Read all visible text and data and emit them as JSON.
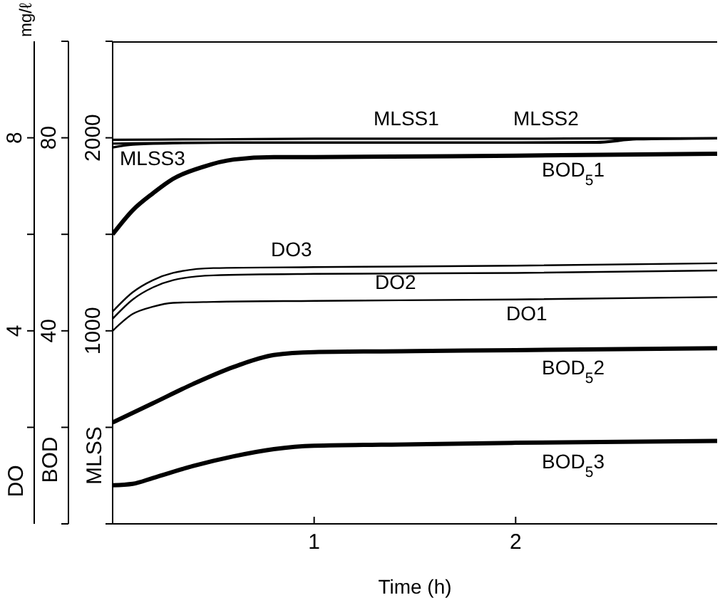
{
  "chart_data": {
    "type": "line",
    "xlabel": "Time (h)",
    "ylabel": "MLSS",
    "y2label": "BOD",
    "y3label": "DO",
    "annotations": [
      "mg/ℓ"
    ],
    "xlim": [
      0,
      3
    ],
    "xticks": [
      1,
      2
    ],
    "ylim": [
      0,
      2500
    ],
    "yticks": [
      {
        "value": 0,
        "label": null
      },
      {
        "value": 500,
        "label": null
      },
      1000,
      {
        "value": 1500,
        "label": null
      },
      2000,
      {
        "value": 2500,
        "label": null
      }
    ],
    "y2lim": [
      0,
      100
    ],
    "y2ticks": [
      {
        "value": 0,
        "label": null
      },
      {
        "value": 20,
        "label": null
      },
      40,
      {
        "value": 60,
        "label": null
      },
      80,
      {
        "value": 100,
        "label": null
      }
    ],
    "y3lim": [
      0,
      10
    ],
    "y3ticks": [
      {
        "value": 2,
        "label": null
      },
      4,
      {
        "value": 6,
        "label": null
      },
      8
    ],
    "series": [
      {
        "name": "MLSS1",
        "color": "#000000",
        "axis": "y",
        "x": [
          0,
          0.5,
          1,
          1.5,
          2,
          2.5,
          3
        ],
        "values": [
          1990,
          1992,
          1995,
          1995,
          1995,
          1997,
          1997
        ]
      },
      {
        "name": "MLSS2",
        "color": "#000000",
        "axis": "y",
        "x": [
          0,
          0.5,
          1,
          1.5,
          2,
          2.4,
          2.6,
          3
        ],
        "values": [
          1970,
          1975,
          1975,
          1975,
          1975,
          1978,
          1995,
          1997
        ]
      },
      {
        "name": "MLSS3",
        "color": "#000000",
        "axis": "y",
        "x": [
          0,
          0.1,
          0.3,
          0.6,
          1,
          2,
          2.4,
          2.6,
          3
        ],
        "values": [
          1950,
          1965,
          1972,
          1975,
          1975,
          1975,
          1975,
          1992,
          1997
        ]
      },
      {
        "name": "BOD$_{5}$1",
        "color": "#000000",
        "axis": "y2",
        "x": [
          0,
          0.1,
          0.2,
          0.3,
          0.45,
          0.6,
          0.8,
          1,
          2,
          3
        ],
        "values": [
          60,
          65,
          68.5,
          71.5,
          74,
          75.5,
          76,
          76,
          76.3,
          76.7
        ]
      },
      {
        "name": "DO3",
        "color": "#000000",
        "axis": "y3",
        "x": [
          0,
          0.1,
          0.2,
          0.3,
          0.5,
          1,
          2,
          3
        ],
        "values": [
          4.4,
          4.8,
          5.05,
          5.2,
          5.3,
          5.32,
          5.35,
          5.4
        ]
      },
      {
        "name": "DO2",
        "color": "#000000",
        "axis": "y3",
        "x": [
          0,
          0.1,
          0.2,
          0.3,
          0.5,
          1,
          2,
          3
        ],
        "values": [
          4.25,
          4.65,
          4.9,
          5.05,
          5.15,
          5.18,
          5.2,
          5.25
        ]
      },
      {
        "name": "DO1",
        "color": "#000000",
        "axis": "y3",
        "x": [
          0,
          0.1,
          0.2,
          0.3,
          0.5,
          1,
          2,
          3
        ],
        "values": [
          4.0,
          4.35,
          4.5,
          4.58,
          4.6,
          4.62,
          4.65,
          4.7
        ]
      },
      {
        "name": "BOD$_{5}$2",
        "color": "#000000",
        "axis": "y2",
        "x": [
          0,
          0.2,
          0.4,
          0.6,
          0.8,
          1,
          1.5,
          2,
          3
        ],
        "values": [
          21,
          25,
          29,
          32.5,
          35,
          35.6,
          35.8,
          36,
          36.4
        ]
      },
      {
        "name": "BOD$_{5}$3",
        "color": "#000000",
        "axis": "y2",
        "x": [
          0,
          0.1,
          0.2,
          0.4,
          0.6,
          0.8,
          1,
          1.5,
          2,
          3
        ],
        "values": [
          8,
          8.3,
          9.5,
          12,
          14,
          15.5,
          16.2,
          16.5,
          16.8,
          17.2
        ]
      }
    ]
  }
}
